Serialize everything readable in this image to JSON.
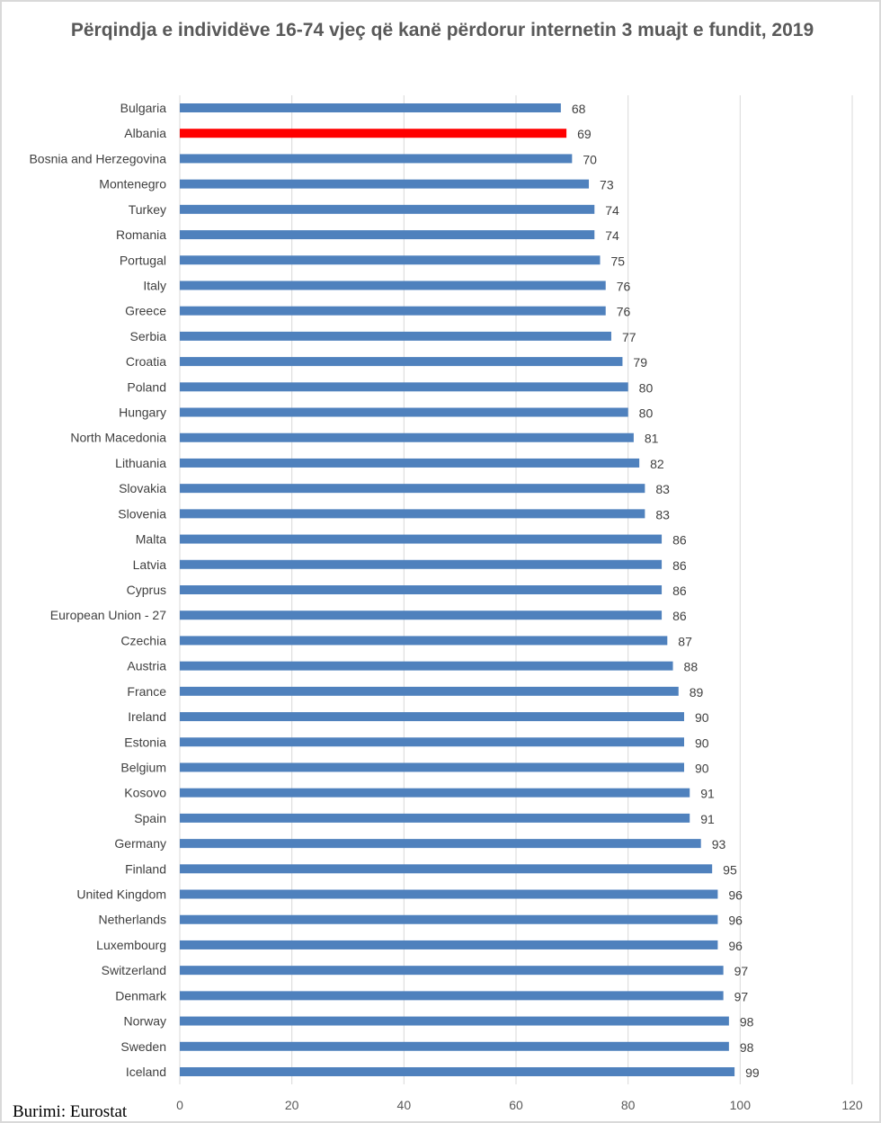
{
  "chart_data": {
    "type": "bar",
    "orientation": "horizontal",
    "title": "Përqindja e individëve 16-74 vjeç që kanë përdorur internetin 3 muajt e fundit, 2019",
    "categories": [
      "Bulgaria",
      "Albania",
      "Bosnia and Herzegovina",
      "Montenegro",
      "Turkey",
      "Romania",
      "Portugal",
      "Italy",
      "Greece",
      "Serbia",
      "Croatia",
      "Poland",
      "Hungary",
      "North Macedonia",
      "Lithuania",
      "Slovakia",
      "Slovenia",
      "Malta",
      "Latvia",
      "Cyprus",
      "European Union - 27",
      "Czechia",
      "Austria",
      "France",
      "Ireland",
      "Estonia",
      "Belgium",
      "Kosovo",
      "Spain",
      "Germany",
      "Finland",
      "United Kingdom",
      "Netherlands",
      "Luxembourg",
      "Switzerland",
      "Denmark",
      "Norway",
      "Sweden",
      "Iceland"
    ],
    "values": [
      68,
      69,
      70,
      73,
      74,
      74,
      75,
      76,
      76,
      77,
      79,
      80,
      80,
      81,
      82,
      83,
      83,
      86,
      86,
      86,
      86,
      87,
      88,
      89,
      90,
      90,
      90,
      91,
      91,
      93,
      95,
      96,
      96,
      96,
      97,
      97,
      98,
      98,
      99
    ],
    "highlight": {
      "category": "Albania",
      "color": "#FF0000"
    },
    "bar_color": "#4F81BD",
    "xlim": [
      0,
      120
    ],
    "xticks": [
      "0",
      "20",
      "40",
      "60",
      "80",
      "100",
      "120"
    ],
    "grid": true,
    "data_labels": true,
    "xlabel": "",
    "ylabel": ""
  },
  "source": "Burimi: Eurostat"
}
